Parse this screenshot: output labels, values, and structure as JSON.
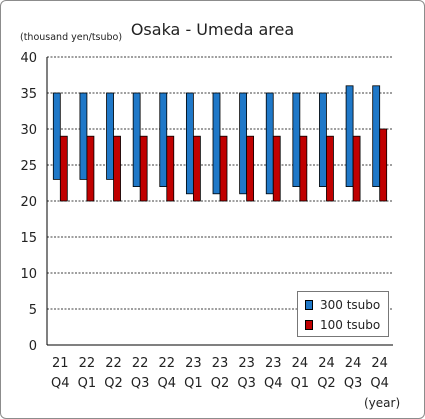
{
  "chart_data": {
    "type": "bar",
    "title": "Osaka - Umeda area",
    "ylabel": "(thousand yen/tsubo)",
    "xlabel": "(year)",
    "ylim": [
      0,
      40
    ],
    "yticks": [
      0,
      5,
      10,
      15,
      20,
      25,
      30,
      35,
      40
    ],
    "grid": true,
    "legend_position": "bottom-right",
    "categories": [
      {
        "year": "21",
        "quarter": "Q4"
      },
      {
        "year": "22",
        "quarter": "Q1"
      },
      {
        "year": "22",
        "quarter": "Q2"
      },
      {
        "year": "22",
        "quarter": "Q3"
      },
      {
        "year": "22",
        "quarter": "Q4"
      },
      {
        "year": "23",
        "quarter": "Q1"
      },
      {
        "year": "23",
        "quarter": "Q2"
      },
      {
        "year": "23",
        "quarter": "Q3"
      },
      {
        "year": "23",
        "quarter": "Q4"
      },
      {
        "year": "24",
        "quarter": "Q1"
      },
      {
        "year": "24",
        "quarter": "Q2"
      },
      {
        "year": "24",
        "quarter": "Q3"
      },
      {
        "year": "24",
        "quarter": "Q4"
      }
    ],
    "series": [
      {
        "name": "300 tsubo",
        "color": "#1f78c8",
        "low": [
          23,
          23,
          23,
          22,
          22,
          21,
          21,
          21,
          21,
          22,
          22,
          22,
          22
        ],
        "high": [
          35,
          35,
          35,
          35,
          35,
          35,
          35,
          35,
          35,
          35,
          35,
          36,
          36
        ]
      },
      {
        "name": "100 tsubo",
        "color": "#c00000",
        "low": [
          20,
          20,
          20,
          20,
          20,
          20,
          20,
          20,
          20,
          20,
          20,
          20,
          20
        ],
        "high": [
          29,
          29,
          29,
          29,
          29,
          29,
          29,
          29,
          29,
          29,
          29,
          29,
          30
        ]
      }
    ]
  }
}
